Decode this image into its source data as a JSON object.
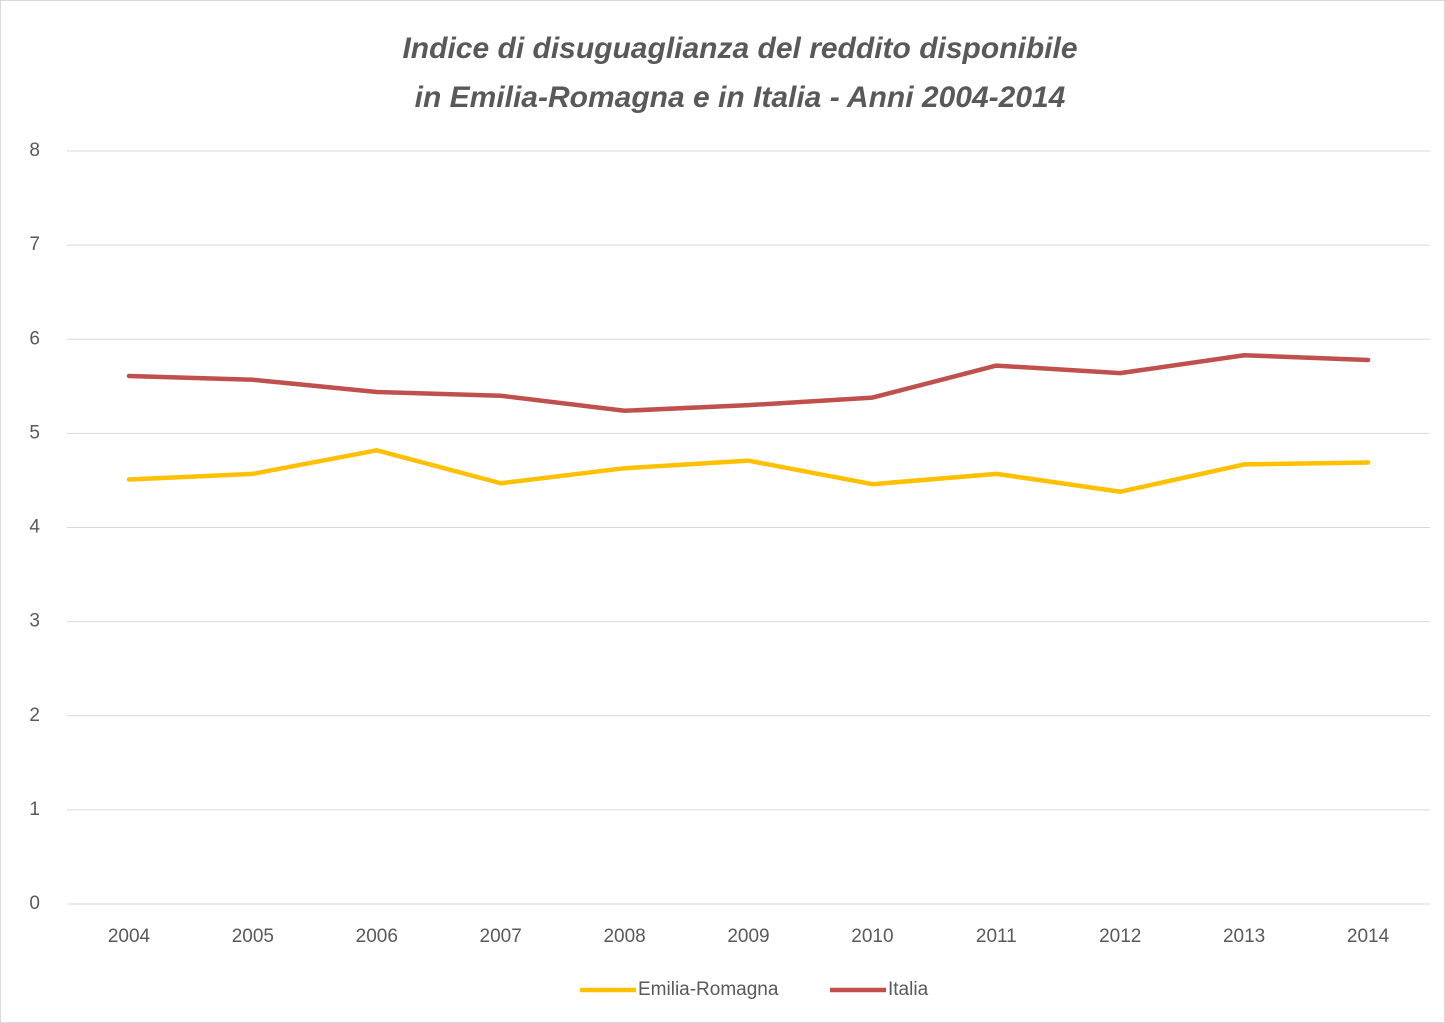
{
  "chart_data": {
    "type": "line",
    "title": [
      "Indice di disuguaglianza del reddito disponibile",
      "in Emilia-Romagna e in Italia - Anni 2004-2014"
    ],
    "categories": [
      "2004",
      "2005",
      "2006",
      "2007",
      "2008",
      "2009",
      "2010",
      "2011",
      "2012",
      "2013",
      "2014"
    ],
    "series": [
      {
        "name": "Emilia-Romagna",
        "color": "#ffc000",
        "values": [
          4.51,
          4.57,
          4.82,
          4.47,
          4.63,
          4.71,
          4.46,
          4.57,
          4.38,
          4.67,
          4.69
        ]
      },
      {
        "name": "Italia",
        "color": "#c0504d",
        "values": [
          5.61,
          5.57,
          5.44,
          5.4,
          5.24,
          5.3,
          5.38,
          5.72,
          5.64,
          5.83,
          5.78
        ]
      }
    ],
    "ylim": [
      0,
      8
    ],
    "yticks": [
      0,
      1,
      2,
      3,
      4,
      5,
      6,
      7,
      8
    ],
    "grid": true,
    "legend": "bottom"
  }
}
